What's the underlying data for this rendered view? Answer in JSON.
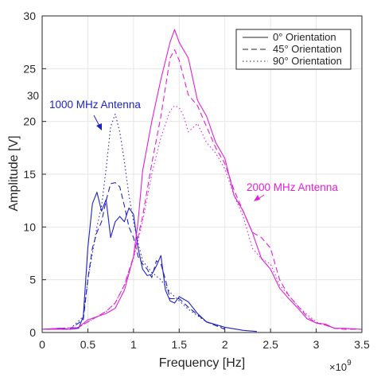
{
  "chart_data": {
    "type": "line",
    "xlabel": "Frequency [Hz]",
    "ylabel": "Amplitude [V]",
    "x_exponent_base": "×10",
    "x_exponent_power": "9",
    "xlim": [
      0,
      3.5
    ],
    "ylim": [
      0,
      30
    ],
    "xticks": [
      0,
      0.5,
      1,
      1.5,
      2,
      2.5,
      3,
      3.5
    ],
    "xtick_labels": [
      "0",
      "0.5",
      "1",
      "1.5",
      "2",
      "2.5",
      "3",
      "3.5"
    ],
    "yticks": [
      0,
      5,
      10,
      15,
      20,
      25,
      30
    ],
    "ytick_labels": [
      "0",
      "5",
      "10",
      "15",
      "20",
      "25",
      "30"
    ],
    "grid": true,
    "legend_position": "top-right",
    "legend": [
      {
        "label": "0° Orientation",
        "dash": "solid"
      },
      {
        "label": "45° Orientation",
        "dash": "dashed"
      },
      {
        "label": "90° Orientation",
        "dash": "dotted"
      }
    ],
    "colors": {
      "1000 MHz Antenna": "#1f22c4",
      "2000 MHz Antenna": "#e11fd6",
      "axis": "#262626",
      "grid": "#e6e6e6"
    },
    "annotations": [
      {
        "text": "1000 MHz Antenna",
        "color": "#1f22c4",
        "arrow_to": [
          0.65,
          19.5
        ]
      },
      {
        "text": "2000 MHz Antenna",
        "color": "#e11fd6",
        "arrow_to": [
          2.3,
          12.5
        ]
      },
      {
        "text": "30",
        "color": "#262626",
        "x": 0,
        "y": 22.3
      }
    ],
    "series": [
      {
        "antenna": "1000 MHz Antenna",
        "orientation": "0°",
        "dash": "solid",
        "x": [
          0,
          0.2,
          0.3,
          0.4,
          0.45,
          0.5,
          0.55,
          0.6,
          0.65,
          0.7,
          0.75,
          0.8,
          0.85,
          0.9,
          0.95,
          1.0,
          1.05,
          1.1,
          1.15,
          1.2,
          1.25,
          1.3,
          1.35,
          1.4,
          1.45,
          1.5,
          1.6,
          1.7,
          1.8,
          2.0,
          2.2,
          2.35
        ],
        "y": [
          0.3,
          0.4,
          0.3,
          0.4,
          1.5,
          8.0,
          12.2,
          13.3,
          11.5,
          12.6,
          9.0,
          10.5,
          11.0,
          10.5,
          11.8,
          11.2,
          8.0,
          6.0,
          5.4,
          5.5,
          6.3,
          7.3,
          4.0,
          3.0,
          2.8,
          3.4,
          2.9,
          1.8,
          1.0,
          0.5,
          0.2,
          0.1
        ]
      },
      {
        "antenna": "1000 MHz Antenna",
        "orientation": "45°",
        "dash": "dashed",
        "x": [
          0,
          0.3,
          0.45,
          0.5,
          0.55,
          0.6,
          0.65,
          0.7,
          0.75,
          0.8,
          0.85,
          0.9,
          0.95,
          1.0,
          1.05,
          1.1,
          1.15,
          1.2,
          1.25,
          1.3,
          1.35,
          1.4,
          1.5,
          1.6,
          1.8,
          2.0
        ],
        "y": [
          0.3,
          0.3,
          1.2,
          5.0,
          8.0,
          9.5,
          10.5,
          12.5,
          14.1,
          14.2,
          13.8,
          12.0,
          10.0,
          9.0,
          7.2,
          6.5,
          6.0,
          5.2,
          6.8,
          6.5,
          5.0,
          3.2,
          3.2,
          2.4,
          1.0,
          0.3
        ]
      },
      {
        "antenna": "1000 MHz Antenna",
        "orientation": "90°",
        "dash": "dotted",
        "x": [
          0,
          0.3,
          0.45,
          0.5,
          0.55,
          0.6,
          0.65,
          0.7,
          0.75,
          0.8,
          0.85,
          0.9,
          0.95,
          1.0,
          1.05,
          1.1,
          1.2,
          1.3,
          1.4,
          1.5,
          1.6,
          1.8,
          2.0
        ],
        "y": [
          0.3,
          0.3,
          1.5,
          5.0,
          7.5,
          10.0,
          12.0,
          15.5,
          19.5,
          20.7,
          19.0,
          16.2,
          13.0,
          10.5,
          8.5,
          6.8,
          5.7,
          5.0,
          3.8,
          3.0,
          2.2,
          1.0,
          0.4
        ]
      },
      {
        "antenna": "2000 MHz Antenna",
        "orientation": "0°",
        "dash": "solid",
        "x": [
          0,
          0.3,
          0.4,
          0.5,
          0.6,
          0.7,
          0.8,
          0.9,
          1.0,
          1.05,
          1.1,
          1.2,
          1.3,
          1.4,
          1.45,
          1.5,
          1.6,
          1.7,
          1.8,
          1.9,
          2.0,
          2.1,
          2.2,
          2.3,
          2.4,
          2.5,
          2.6,
          2.7,
          2.8,
          2.9,
          3.0,
          3.1,
          3.2,
          3.3,
          3.5
        ],
        "y": [
          0.3,
          0.3,
          0.5,
          1.2,
          1.5,
          1.8,
          2.3,
          4.0,
          7.2,
          10.5,
          15.3,
          20.0,
          24.0,
          27.5,
          28.7,
          27.5,
          26.0,
          22.0,
          20.5,
          18.0,
          16.5,
          13.0,
          11.5,
          9.5,
          7.0,
          6.0,
          4.2,
          3.2,
          2.3,
          1.3,
          0.9,
          0.8,
          0.4,
          0.4,
          0.3
        ]
      },
      {
        "antenna": "2000 MHz Antenna",
        "orientation": "45°",
        "dash": "dashed",
        "x": [
          0,
          0.4,
          0.5,
          0.6,
          0.7,
          0.8,
          0.9,
          1.0,
          1.1,
          1.2,
          1.3,
          1.4,
          1.45,
          1.5,
          1.6,
          1.7,
          1.8,
          1.9,
          2.0,
          2.1,
          2.2,
          2.3,
          2.4,
          2.5,
          2.6,
          2.7,
          2.8,
          2.9,
          3.0,
          3.1,
          3.2,
          3.3,
          3.5
        ],
        "y": [
          0.3,
          0.5,
          1.0,
          1.5,
          2.0,
          2.8,
          4.5,
          7.2,
          11.0,
          16.0,
          20.5,
          26.0,
          26.8,
          25.8,
          22.5,
          21.5,
          19.5,
          17.5,
          16.0,
          13.5,
          11.5,
          9.5,
          9.0,
          8.0,
          5.0,
          3.5,
          2.5,
          1.5,
          0.9,
          0.7,
          0.4,
          0.3,
          0.3
        ]
      },
      {
        "antenna": "2000 MHz Antenna",
        "orientation": "90°",
        "dash": "dotted",
        "x": [
          0,
          0.4,
          0.5,
          0.6,
          0.7,
          0.8,
          0.9,
          1.0,
          1.1,
          1.2,
          1.3,
          1.4,
          1.45,
          1.5,
          1.55,
          1.6,
          1.7,
          1.8,
          1.9,
          2.0,
          2.1,
          2.2,
          2.3,
          2.4,
          2.5,
          2.6,
          2.7,
          2.8,
          2.9,
          3.0,
          3.1,
          3.2,
          3.5
        ],
        "y": [
          0.3,
          0.5,
          1.0,
          1.5,
          2.0,
          2.8,
          4.5,
          7.0,
          10.5,
          15.0,
          18.5,
          21.0,
          21.5,
          21.3,
          20.5,
          19.0,
          19.8,
          18.0,
          17.0,
          15.5,
          13.0,
          11.0,
          8.0,
          7.0,
          6.5,
          4.5,
          3.5,
          2.5,
          1.7,
          1.0,
          0.7,
          0.4,
          0.3
        ]
      }
    ]
  }
}
